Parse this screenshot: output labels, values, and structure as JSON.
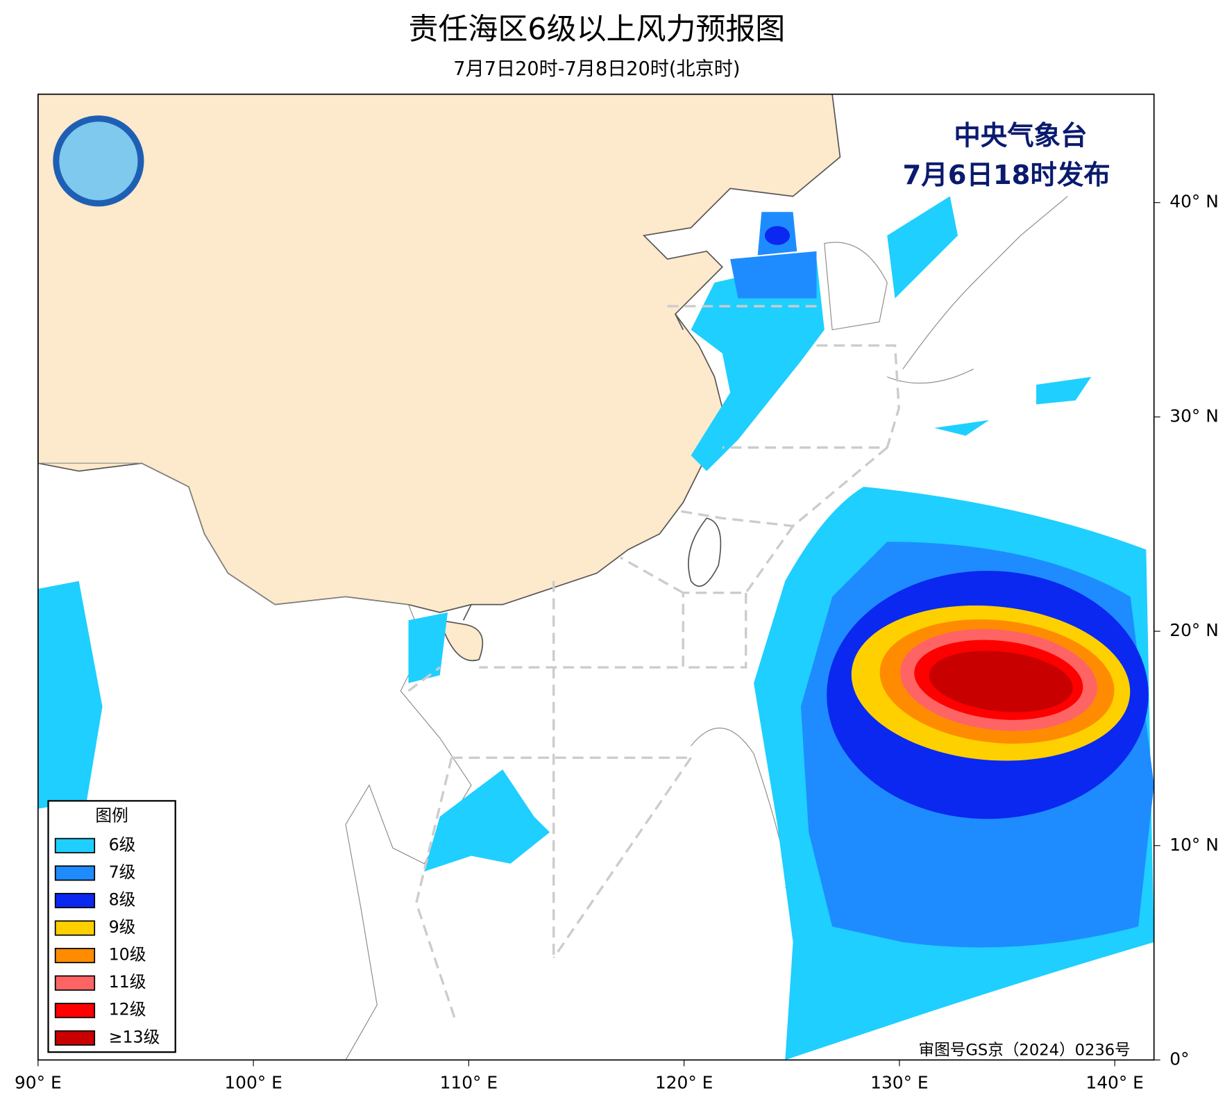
{
  "map": {
    "title": "责任海区6级以上风力预报图",
    "subtitle": "7月7日20时-7月8日20时(北京时)",
    "publisher": "中央气象台",
    "issued": "7月6日18时发布",
    "approval": "审图号GS京（2024）0236号",
    "lon_ticks": [
      {
        "value": 90,
        "label": "90° E"
      },
      {
        "value": 100,
        "label": "100° E"
      },
      {
        "value": 110,
        "label": "110° E"
      },
      {
        "value": 120,
        "label": "120° E"
      },
      {
        "value": 130,
        "label": "130° E"
      },
      {
        "value": 140,
        "label": "140° E"
      }
    ],
    "lat_ticks": [
      {
        "value": 0,
        "label": "0°"
      },
      {
        "value": 10,
        "label": "10° N"
      },
      {
        "value": 20,
        "label": "20° N"
      },
      {
        "value": 30,
        "label": "30° N"
      },
      {
        "value": 40,
        "label": "40° N"
      }
    ],
    "legend": {
      "title": "图例",
      "items": [
        {
          "label": "6级",
          "color": "#1ecfff"
        },
        {
          "label": "7级",
          "color": "#1e8cff"
        },
        {
          "label": "8级",
          "color": "#0a28f0"
        },
        {
          "label": "9级",
          "color": "#ffd000"
        },
        {
          "label": "10级",
          "color": "#ff8c00"
        },
        {
          "label": "11级",
          "color": "#ff6464"
        },
        {
          "label": "12级",
          "color": "#ff0000"
        },
        {
          "label": "≥13级",
          "color": "#c80000"
        }
      ]
    }
  }
}
